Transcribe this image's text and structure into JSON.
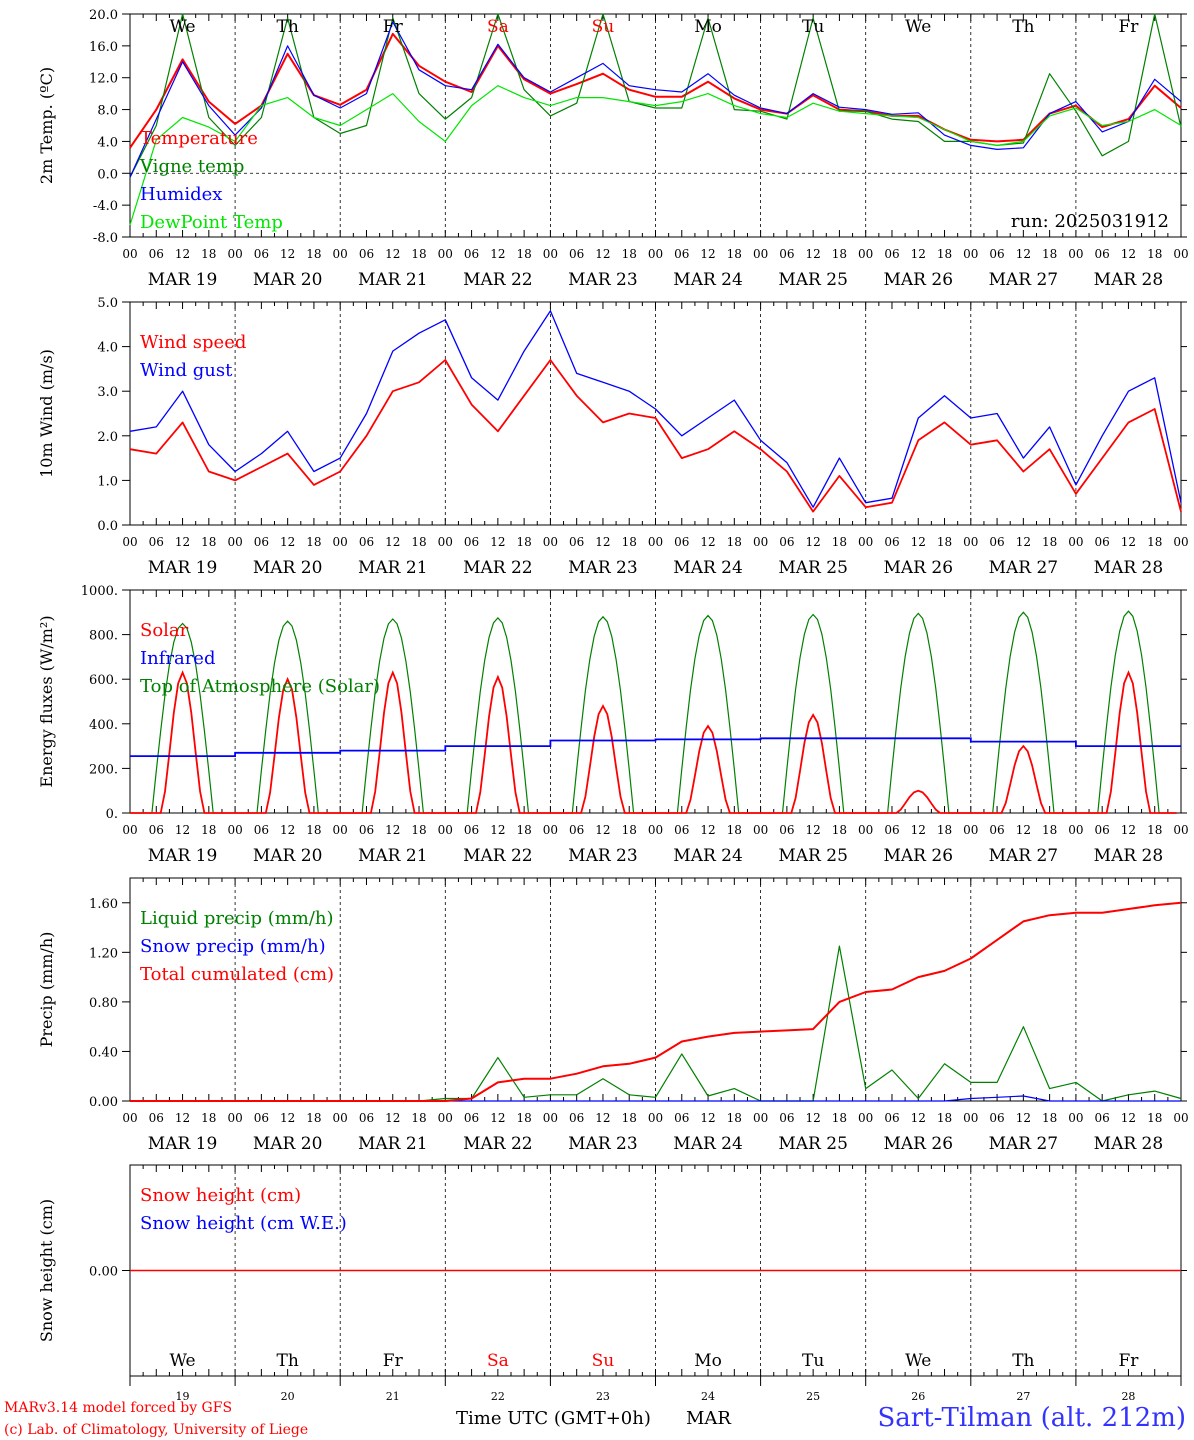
{
  "colors": {
    "temperature": "#ff0000",
    "vigne": "#008000",
    "humidex": "#0000ff",
    "dewpoint": "#00e600",
    "weekend": "#ff0000",
    "weekday": "#000000",
    "station": "#3333ff"
  },
  "chart_data": [
    {
      "type": "line",
      "ylabel": "2m Temp. (ºC)",
      "ylim": [
        -8,
        20
      ],
      "yticks": [
        "20.0",
        "16.0",
        "12.0",
        "8.0",
        "4.0",
        "0.0",
        "-4.0",
        "-8.0"
      ],
      "annotation": "run: 2025031912",
      "day_labels": [
        "We",
        "Th",
        "Fr",
        "Sa",
        "Su",
        "Mo",
        "Tu",
        "We",
        "Th",
        "Fr"
      ],
      "x_hours": [
        0,
        6,
        12,
        18,
        24,
        30,
        36,
        42,
        48,
        54,
        60,
        66,
        72,
        78,
        84,
        90,
        96,
        102,
        108,
        114,
        120,
        126,
        132,
        138,
        144,
        150,
        156,
        162,
        168,
        174,
        180,
        186,
        192,
        198,
        204,
        210,
        216,
        222,
        228,
        234,
        240
      ],
      "series": [
        {
          "name": "Temperature",
          "color": "#ff0000",
          "values": [
            3.2,
            8.0,
            14.3,
            9.0,
            6.2,
            8.5,
            15.0,
            9.8,
            8.6,
            10.5,
            17.5,
            13.5,
            11.5,
            10.2,
            16.0,
            11.8,
            10.0,
            11.2,
            12.5,
            10.5,
            9.6,
            9.6,
            11.5,
            9.4,
            8.0,
            7.5,
            9.8,
            8.0,
            7.8,
            7.2,
            7.2,
            5.5,
            4.2,
            4.0,
            4.2,
            7.5,
            8.5,
            5.8,
            6.8,
            11.0,
            8.2
          ]
        },
        {
          "name": "Vigne temp",
          "color": "#008000",
          "values": [
            -0.5,
            6.0,
            20.0,
            7.0,
            3.5,
            7.0,
            19.5,
            7.0,
            5.0,
            6.0,
            19.5,
            10.0,
            6.8,
            9.5,
            20.0,
            10.5,
            7.2,
            8.8,
            20.0,
            9.0,
            8.2,
            8.2,
            19.5,
            8.0,
            7.8,
            6.8,
            19.5,
            7.8,
            7.8,
            6.8,
            6.5,
            4.0,
            4.0,
            3.5,
            3.8,
            12.5,
            7.8,
            2.2,
            4.0,
            20.0,
            5.8
          ]
        },
        {
          "name": "Humidex",
          "color": "#0000ff",
          "values": [
            -0.5,
            6.8,
            14.0,
            8.5,
            4.8,
            8.2,
            16.0,
            9.8,
            8.2,
            10.0,
            19.0,
            13.0,
            11.0,
            10.5,
            16.2,
            12.0,
            10.2,
            12.0,
            13.8,
            11.0,
            10.5,
            10.2,
            12.5,
            9.8,
            8.2,
            7.5,
            10.0,
            8.3,
            8.0,
            7.4,
            7.6,
            4.8,
            3.5,
            3.0,
            3.2,
            7.5,
            9.0,
            5.2,
            6.5,
            11.8,
            9.0
          ]
        },
        {
          "name": "DewPoint Temp",
          "color": "#00e600",
          "values": [
            -6.5,
            4.2,
            7.0,
            5.8,
            4.0,
            8.5,
            9.5,
            7.0,
            6.0,
            8.0,
            10.0,
            6.5,
            4.0,
            8.5,
            11.0,
            9.5,
            8.5,
            9.5,
            9.5,
            9.0,
            8.5,
            9.0,
            10.0,
            8.5,
            7.5,
            7.0,
            8.8,
            7.8,
            7.5,
            7.2,
            7.0,
            5.5,
            4.0,
            3.5,
            4.0,
            7.2,
            8.2,
            6.0,
            6.5,
            8.0,
            6.0
          ]
        }
      ]
    },
    {
      "type": "line",
      "ylabel": "10m Wind (m/s)",
      "ylim": [
        0,
        5
      ],
      "yticks": [
        "5.0",
        "4.0",
        "3.0",
        "2.0",
        "1.0",
        "0.0"
      ],
      "x_hours": [
        0,
        6,
        12,
        18,
        24,
        30,
        36,
        42,
        48,
        54,
        60,
        66,
        72,
        78,
        84,
        90,
        96,
        102,
        108,
        114,
        120,
        126,
        132,
        138,
        144,
        150,
        156,
        162,
        168,
        174,
        180,
        186,
        192,
        198,
        204,
        210,
        216,
        222,
        228,
        234,
        240
      ],
      "series": [
        {
          "name": "Wind speed",
          "color": "#ff0000",
          "values": [
            1.7,
            1.6,
            2.3,
            1.2,
            1.0,
            1.3,
            1.6,
            0.9,
            1.2,
            2.0,
            3.0,
            3.2,
            3.7,
            2.7,
            2.1,
            2.9,
            3.7,
            2.9,
            2.3,
            2.5,
            2.4,
            1.5,
            1.7,
            2.1,
            1.7,
            1.2,
            0.3,
            1.1,
            0.4,
            0.5,
            1.9,
            2.3,
            1.8,
            1.9,
            1.2,
            1.7,
            0.7,
            1.5,
            2.3,
            2.6,
            0.3
          ]
        },
        {
          "name": "Wind gust",
          "color": "#0000ff",
          "values": [
            2.1,
            2.2,
            3.0,
            1.8,
            1.2,
            1.6,
            2.1,
            1.2,
            1.5,
            2.5,
            3.9,
            4.3,
            4.6,
            3.3,
            2.8,
            3.9,
            4.8,
            3.4,
            3.2,
            3.0,
            2.6,
            2.0,
            2.4,
            2.8,
            1.9,
            1.4,
            0.4,
            1.5,
            0.5,
            0.6,
            2.4,
            2.9,
            2.4,
            2.5,
            1.5,
            2.2,
            0.9,
            2.0,
            3.0,
            3.3,
            0.5
          ]
        }
      ]
    },
    {
      "type": "line",
      "ylabel": "Energy fluxes (W/m²)",
      "ylim": [
        0,
        1000
      ],
      "yticks": [
        "1000.",
        "800.",
        "600.",
        "400.",
        "200.",
        "0."
      ],
      "series": [
        {
          "name": "Solar",
          "color": "#ff0000",
          "daily_peaks": [
            630,
            600,
            630,
            610,
            480,
            390,
            440,
            100,
            300,
            630
          ]
        },
        {
          "name": "Infrared",
          "color": "#0000ff",
          "daily_mean": [
            255,
            270,
            280,
            300,
            325,
            330,
            335,
            335,
            320,
            300
          ]
        },
        {
          "name": "Top of Atmosphere (Solar)",
          "color": "#008000",
          "daily_peaks": [
            850,
            860,
            870,
            875,
            880,
            885,
            890,
            895,
            900,
            905
          ]
        }
      ]
    },
    {
      "type": "line",
      "ylabel": "Precip (mm/h)",
      "ylim": [
        0,
        1.8
      ],
      "yticks": [
        "1.60",
        "1.20",
        "0.80",
        "0.40",
        "0.00"
      ],
      "x_hours": [
        0,
        6,
        12,
        18,
        24,
        30,
        36,
        42,
        48,
        54,
        60,
        66,
        72,
        78,
        84,
        90,
        96,
        102,
        108,
        114,
        120,
        126,
        132,
        138,
        144,
        150,
        156,
        162,
        168,
        174,
        180,
        186,
        192,
        198,
        204,
        210,
        216,
        222,
        228,
        234,
        240
      ],
      "series": [
        {
          "name": "Liquid precip (mm/h)",
          "color": "#008000",
          "values": [
            0,
            0,
            0,
            0,
            0,
            0,
            0,
            0,
            0,
            0,
            0,
            0,
            0.02,
            0.02,
            0.35,
            0.03,
            0.05,
            0.05,
            0.18,
            0.05,
            0.03,
            0.38,
            0.04,
            0.1,
            0,
            0,
            0,
            1.25,
            0.1,
            0.25,
            0.02,
            0.3,
            0.15,
            0.15,
            0.6,
            0.1,
            0.15,
            0,
            0.05,
            0.08,
            0.02
          ]
        },
        {
          "name": "Snow precip (mm/h)",
          "color": "#0000ff",
          "values": [
            0,
            0,
            0,
            0,
            0,
            0,
            0,
            0,
            0,
            0,
            0,
            0,
            0,
            0,
            0,
            0,
            0,
            0,
            0,
            0,
            0,
            0,
            0,
            0,
            0,
            0,
            0,
            0,
            0,
            0,
            0,
            0,
            0.02,
            0.03,
            0.04,
            0,
            0,
            0,
            0,
            0,
            0
          ]
        },
        {
          "name": "Total cumulated (cm)",
          "color": "#ff0000",
          "values": [
            0,
            0,
            0,
            0,
            0,
            0,
            0,
            0,
            0,
            0,
            0,
            0,
            0,
            0.02,
            0.15,
            0.18,
            0.18,
            0.22,
            0.28,
            0.3,
            0.35,
            0.48,
            0.52,
            0.55,
            0.56,
            0.57,
            0.58,
            0.8,
            0.88,
            0.9,
            1.0,
            1.05,
            1.15,
            1.3,
            1.45,
            1.5,
            1.52,
            1.52,
            1.55,
            1.58,
            1.6
          ]
        }
      ]
    },
    {
      "type": "line",
      "ylabel": "Snow height (cm)",
      "ylim": [
        -1,
        1
      ],
      "yticks": [
        "0.00"
      ],
      "day_labels": [
        "We",
        "Th",
        "Fr",
        "Sa",
        "Su",
        "Mo",
        "Tu",
        "We",
        "Th",
        "Fr"
      ],
      "day_numbers": [
        "19",
        "20",
        "21",
        "22",
        "23",
        "24",
        "25",
        "26",
        "27",
        "28"
      ],
      "series": [
        {
          "name": "Snow height (cm)",
          "color": "#ff0000",
          "values": [
            0,
            0
          ]
        },
        {
          "name": "Snow height (cm W.E.)",
          "color": "#0000ff",
          "values": [
            0,
            0
          ]
        }
      ]
    }
  ],
  "x_axis": {
    "hour_ticks": [
      "00",
      "06",
      "12",
      "18"
    ],
    "final_tick": "00",
    "dates": [
      "MAR 19",
      "MAR 20",
      "MAR 21",
      "MAR 22",
      "MAR 23",
      "MAR 24",
      "MAR 25",
      "MAR 26",
      "MAR 27",
      "MAR 28"
    ]
  },
  "weekend_days": [
    "Sa",
    "Su"
  ],
  "footer": {
    "model": "MARv3.14 model forced by GFS",
    "copyright": "(c) Lab. of Climatology, University of Liege",
    "xlabel": "Time UTC (GMT+0h)",
    "month": "MAR",
    "station": "Sart-Tilman (alt. 212m)"
  }
}
